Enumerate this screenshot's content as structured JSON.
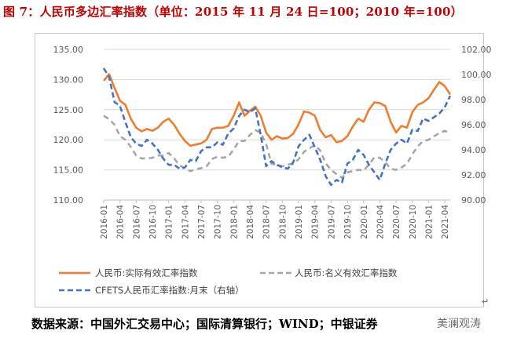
{
  "title": "图 7：人民币多边汇率指数（单位：2015 年 11 月 24 日=100；2010 年=100）",
  "source": "数据来源：中国外汇交易中心；国际清算银行；WIND；中银证券",
  "watermark": "美澜观涛",
  "return_mark": "↵",
  "chart_data": {
    "type": "line",
    "x_ticks": [
      "2016-01",
      "2016-04",
      "2016-07",
      "2016-10",
      "2017-01",
      "2017-04",
      "2017-07",
      "2017-10",
      "2018-01",
      "2018-04",
      "2018-07",
      "2018-10",
      "2019-01",
      "2019-04",
      "2019-07",
      "2019-10",
      "2020-01",
      "2020-04",
      "2020-07",
      "2020-10",
      "2021-01",
      "2021-04"
    ],
    "y_left": {
      "ylim": [
        110,
        135
      ],
      "ticks": [
        "110.00",
        "115.00",
        "120.00",
        "125.00",
        "130.00",
        "135.00"
      ]
    },
    "y_right": {
      "ylim": [
        90,
        102
      ],
      "ticks": [
        "90.00",
        "92.00",
        "94.00",
        "96.00",
        "98.00",
        "100.00",
        "102.00"
      ]
    },
    "legend": [
      "人民币:实际有效汇率指数",
      "人民币:名义有效汇率指数",
      "CFETS人民币汇率指数:月末（右轴）"
    ],
    "series": [
      {
        "name": "人民币:实际有效汇率指数",
        "axis": "left",
        "color": "#ed7d31",
        "dash": "solid",
        "values": [
          129.8,
          130.9,
          128.6,
          126.5,
          125.8,
          123.5,
          122.0,
          121.4,
          121.8,
          121.5,
          122.0,
          123.0,
          123.5,
          122.5,
          121.0,
          119.8,
          119.0,
          119.2,
          119.4,
          120.0,
          121.8,
          122.0,
          122.0,
          122.3,
          124.0,
          126.2,
          124.0,
          124.8,
          125.5,
          124.0,
          121.2,
          120.0,
          120.6,
          120.2,
          120.3,
          121.0,
          122.6,
          124.7,
          124.5,
          124.0,
          121.6,
          120.4,
          120.8,
          119.6,
          119.8,
          120.6,
          122.2,
          123.5,
          123.0,
          125.0,
          126.2,
          126.1,
          125.6,
          123.0,
          121.2,
          122.3,
          122.0,
          124.6,
          125.8,
          126.2,
          126.9,
          128.3,
          129.6,
          128.9,
          127.5
        ]
      },
      {
        "name": "人民币:名义有效汇率指数",
        "axis": "left",
        "color": "#a6a6a6",
        "dash": "dashed",
        "values": [
          124.0,
          123.4,
          122.5,
          120.6,
          120.0,
          118.8,
          117.4,
          116.9,
          116.9,
          117.0,
          117.4,
          117.4,
          117.8,
          116.9,
          115.8,
          115.2,
          114.8,
          115.1,
          115.3,
          115.6,
          116.8,
          117.2,
          117.0,
          117.2,
          118.4,
          119.8,
          119.8,
          120.8,
          121.6,
          121.2,
          119.3,
          116.0,
          115.9,
          115.6,
          115.9,
          116.0,
          116.8,
          118.0,
          118.6,
          119.1,
          118.2,
          116.1,
          115.0,
          114.3,
          113.7,
          114.6,
          114.8,
          115.0,
          114.9,
          115.9,
          117.1,
          117.0,
          116.3,
          115.2,
          115.0,
          115.4,
          116.0,
          117.6,
          118.9,
          119.8,
          120.0,
          120.6,
          121.1,
          121.5,
          121.0
        ]
      },
      {
        "name": "CFETS人民币汇率指数:月末（右轴）",
        "axis": "right",
        "color": "#4472c4",
        "dash": "dashed",
        "values": [
          100.5,
          99.8,
          97.8,
          97.5,
          96.2,
          95.0,
          94.5,
          94.3,
          94.8,
          94.5,
          94.0,
          93.3,
          92.8,
          92.8,
          92.5,
          92.6,
          93.2,
          93.1,
          93.9,
          94.2,
          94.2,
          94.6,
          94.4,
          95.3,
          95.7,
          96.7,
          97.2,
          97.0,
          97.3,
          95.2,
          92.7,
          93.1,
          92.8,
          92.6,
          92.5,
          93.0,
          94.3,
          94.8,
          95.2,
          94.2,
          93.2,
          91.9,
          91.2,
          91.6,
          91.4,
          92.9,
          93.2,
          94.0,
          93.6,
          92.8,
          92.2,
          91.6,
          92.9,
          94.0,
          94.5,
          94.8,
          94.5,
          95.6,
          95.5,
          96.5,
          96.3,
          96.6,
          96.9,
          97.4,
          98.3
        ]
      }
    ]
  }
}
